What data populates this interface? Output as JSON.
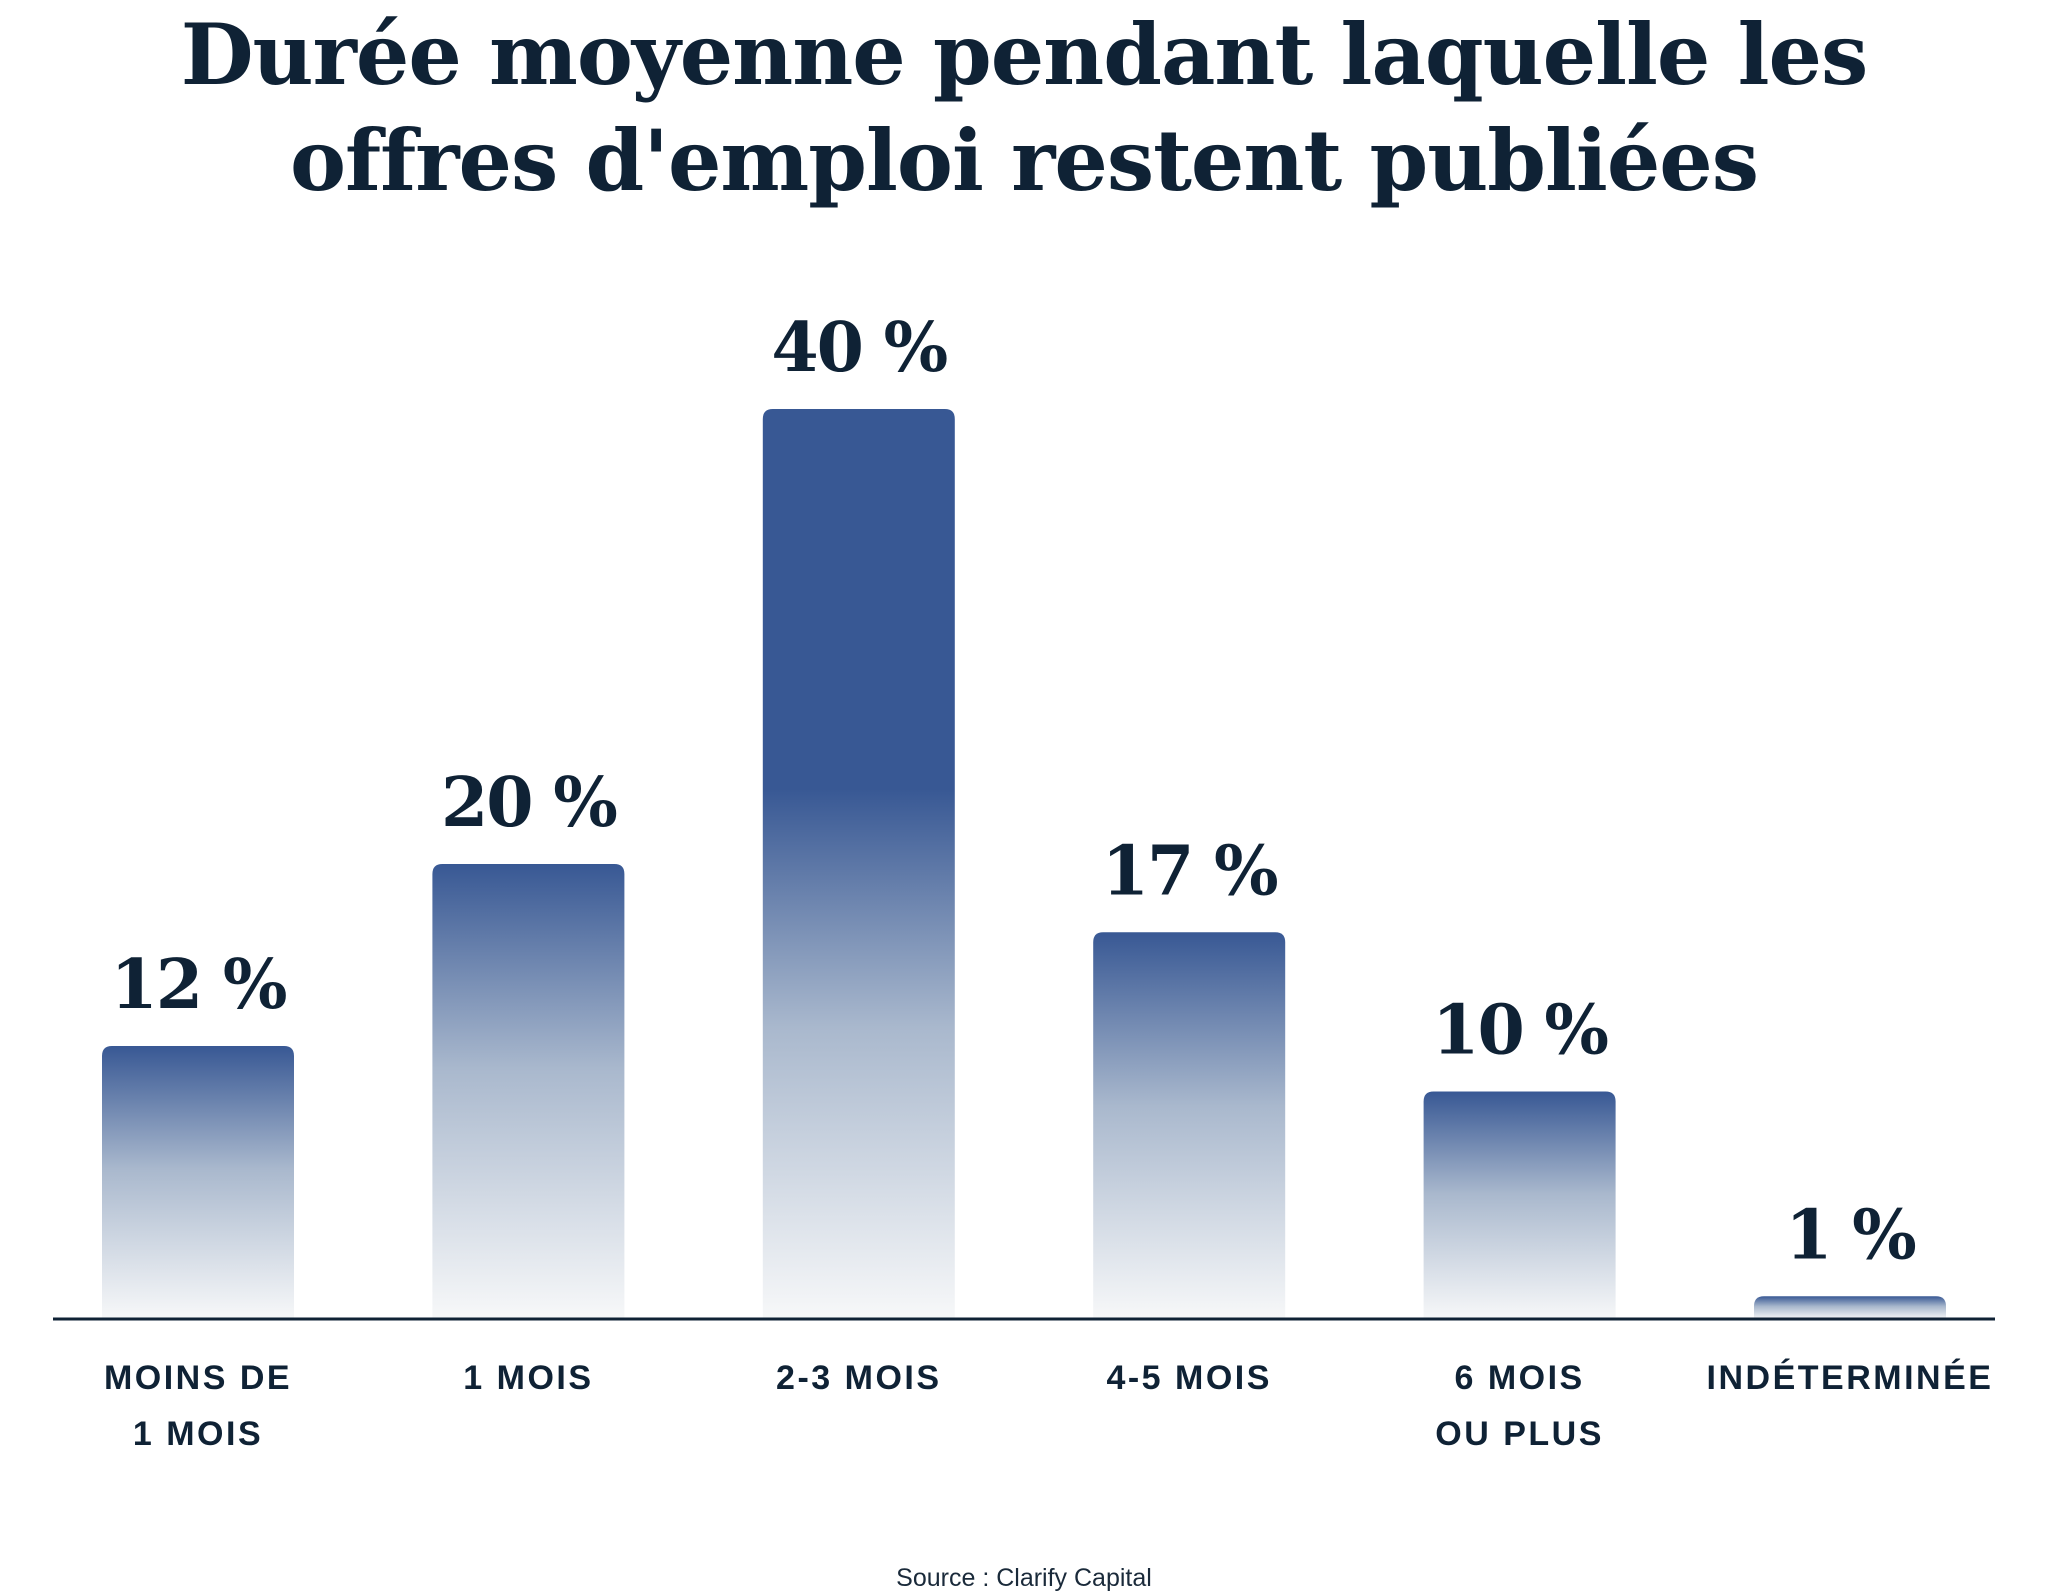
{
  "chart_data": {
    "type": "bar",
    "title": [
      "Durée moyenne pendant laquelle les",
      "offres d'emploi restent publiées"
    ],
    "categories": [
      [
        "MOINS DE",
        "1 MOIS"
      ],
      [
        "1 MOIS"
      ],
      [
        "2-3 MOIS"
      ],
      [
        "4-5 MOIS"
      ],
      [
        "6 MOIS",
        "OU PLUS"
      ],
      [
        "INDÉTERMINÉE"
      ]
    ],
    "values": [
      12,
      20,
      40,
      17,
      10,
      1
    ],
    "data_labels": [
      "12 %",
      "20 %",
      "40 %",
      "17 %",
      "10 %",
      "1 %"
    ],
    "unit": "%",
    "ylim": [
      0,
      40
    ],
    "grid": false,
    "legend": "none",
    "bar_color": "#385894",
    "text_color": "#0f2235",
    "source": "Source : Clarify Capital"
  }
}
